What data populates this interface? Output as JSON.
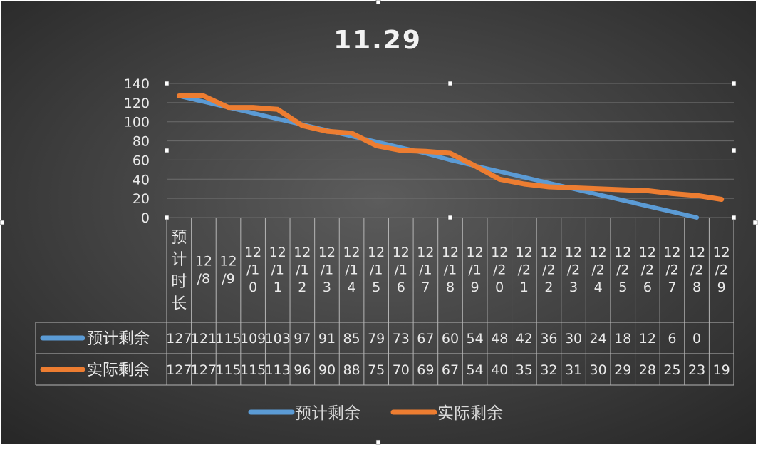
{
  "chart_data": {
    "type": "line",
    "title": "11.29",
    "xlabel": "",
    "ylabel": "",
    "ylim": [
      0,
      140
    ],
    "yticks": [
      0,
      20,
      40,
      60,
      80,
      100,
      120,
      140
    ],
    "grid": true,
    "legend_position": "bottom",
    "data_table": true,
    "categories": [
      "预计时长",
      "12/8",
      "12/9",
      "12/10",
      "12/11",
      "12/12",
      "12/13",
      "12/14",
      "12/15",
      "12/16",
      "12/17",
      "12/18",
      "12/19",
      "12/20",
      "12/21",
      "12/22",
      "12/23",
      "12/24",
      "12/25",
      "12/26",
      "12/27",
      "12/28",
      "12/29"
    ],
    "series": [
      {
        "name": "预计剩余",
        "color": "#5b9bd5",
        "values": [
          127,
          121,
          115,
          109,
          103,
          97,
          91,
          85,
          79,
          73,
          67,
          60,
          54,
          48,
          42,
          36,
          30,
          24,
          18,
          12,
          6,
          0,
          null
        ]
      },
      {
        "name": "实际剩余",
        "color": "#ed7d31",
        "values": [
          127,
          127,
          115,
          115,
          113,
          96,
          90,
          88,
          75,
          70,
          69,
          67,
          54,
          40,
          35,
          32,
          31,
          30,
          29,
          28,
          25,
          23,
          19
        ]
      }
    ]
  }
}
